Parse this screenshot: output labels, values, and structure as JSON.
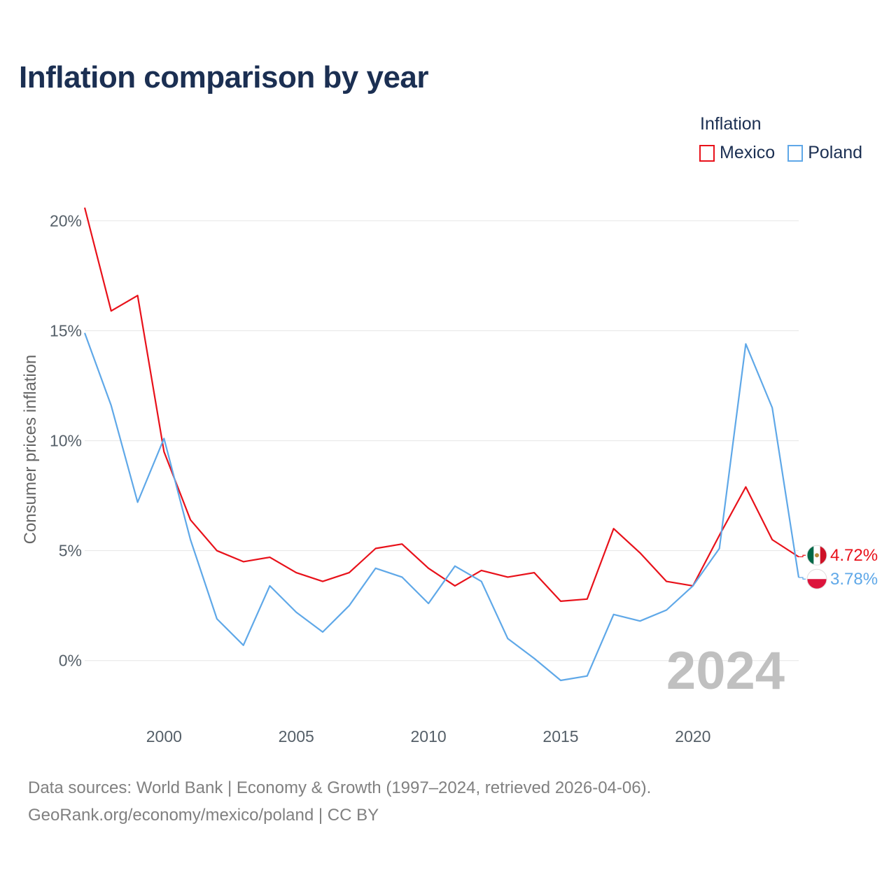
{
  "title": "Inflation comparison by year",
  "legend": {
    "title": "Inflation",
    "items": [
      {
        "label": "Mexico",
        "color": "#e8111a"
      },
      {
        "label": "Poland",
        "color": "#5fa8e8"
      }
    ]
  },
  "footer": {
    "line1": "Data sources: World Bank | Economy & Growth (1997–2024, retrieved 2026-04-06).",
    "line2": "GeoRank.org/economy/mexico/poland | CC BY"
  },
  "chart_data": {
    "type": "line",
    "title": "Inflation comparison by year",
    "xlabel": "",
    "ylabel": "Consumer prices inflation",
    "x": [
      1997,
      1998,
      1999,
      2000,
      2001,
      2002,
      2003,
      2004,
      2005,
      2006,
      2007,
      2008,
      2009,
      2010,
      2011,
      2012,
      2013,
      2014,
      2015,
      2016,
      2017,
      2018,
      2019,
      2020,
      2021,
      2022,
      2023,
      2024
    ],
    "xlim": [
      1997,
      2024
    ],
    "ylim": [
      -2.3,
      21
    ],
    "xticks": [
      2000,
      2005,
      2010,
      2015,
      2020
    ],
    "xtick_labels": [
      "2000",
      "2005",
      "2010",
      "2015",
      "2020"
    ],
    "yticks": [
      0,
      5,
      10,
      15,
      20
    ],
    "ytick_labels": [
      "0%",
      "5%",
      "10%",
      "15%",
      "20%"
    ],
    "grid": true,
    "legend_position": "top-right",
    "year_watermark": "2024",
    "series": [
      {
        "name": "Mexico",
        "color": "#e8111a",
        "end_label": "4.72%",
        "flag": "mexico-flag-icon",
        "values": [
          20.6,
          15.9,
          16.6,
          9.5,
          6.4,
          5.0,
          4.5,
          4.7,
          4.0,
          3.6,
          4.0,
          5.1,
          5.3,
          4.2,
          3.4,
          4.1,
          3.8,
          4.0,
          2.7,
          2.8,
          6.0,
          4.9,
          3.6,
          3.4,
          5.7,
          7.9,
          5.5,
          4.72
        ]
      },
      {
        "name": "Poland",
        "color": "#5fa8e8",
        "end_label": "3.78%",
        "flag": "poland-flag-icon",
        "values": [
          14.9,
          11.6,
          7.2,
          10.1,
          5.5,
          1.9,
          0.7,
          3.4,
          2.2,
          1.3,
          2.5,
          4.2,
          3.8,
          2.6,
          4.3,
          3.6,
          1.0,
          0.1,
          -0.9,
          -0.7,
          2.1,
          1.8,
          2.3,
          3.4,
          5.1,
          14.4,
          11.5,
          3.78
        ]
      }
    ]
  }
}
